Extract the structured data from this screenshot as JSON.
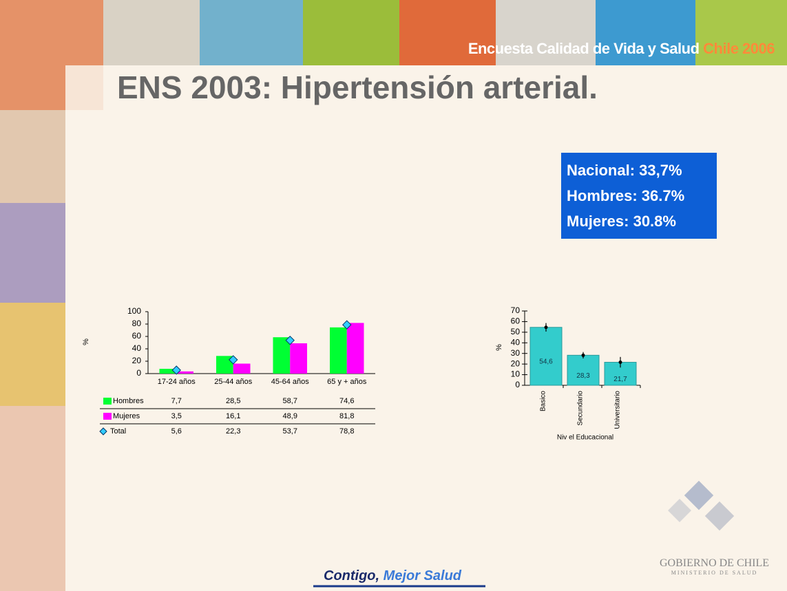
{
  "header": {
    "text": "Encuesta Calidad de Vida y Salud",
    "accent": "Chile 2006"
  },
  "title": "ENS 2003: Hipertensión arterial.",
  "summary": [
    "Nacional: 33,7%",
    "Hombres: 36.7%",
    "Mujeres: 30.8%"
  ],
  "footer": {
    "bold": "Contigo,",
    "accent": "Mejor Salud"
  },
  "logo": {
    "name": "GOBIERNO DE CHILE",
    "ministry": "MINISTERIO DE SALUD"
  },
  "chart_data": [
    {
      "type": "bar",
      "ylabel": "%",
      "categories": [
        "17-24 años",
        "25-44 años",
        "45-64 años",
        "65 y + años"
      ],
      "series": [
        {
          "name": "Hombres",
          "color": "#00ff33",
          "values": [
            7.7,
            28.5,
            58.7,
            74.6
          ],
          "value_labels": [
            "7,7",
            "28,5",
            "58,7",
            "74,6"
          ]
        },
        {
          "name": "Mujeres",
          "color": "#ff00ff",
          "values": [
            3.5,
            16.1,
            48.9,
            81.8
          ],
          "value_labels": [
            "3,5",
            "16,1",
            "48,9",
            "81,8"
          ]
        },
        {
          "name": "Total",
          "color": "#33ccff",
          "marker": "diamond",
          "values": [
            5.6,
            22.3,
            53.7,
            78.8
          ],
          "value_labels": [
            "5,6",
            "22,3",
            "53,7",
            "78,8"
          ]
        }
      ],
      "ylim": [
        0,
        100
      ],
      "yticks": [
        0,
        20,
        40,
        60,
        80,
        100
      ]
    },
    {
      "type": "bar",
      "ylabel": "%",
      "xlabel": "Niv el Educacional",
      "categories": [
        "Basico",
        "Secundario",
        "Universitario"
      ],
      "values": [
        54.6,
        28.3,
        21.7
      ],
      "value_labels": [
        "54,6",
        "28,3",
        "21,7"
      ],
      "errors": [
        4,
        3,
        5
      ],
      "color": "#33cccc",
      "ylim": [
        0,
        70
      ],
      "yticks": [
        0,
        10,
        20,
        30,
        40,
        50,
        60,
        70
      ]
    }
  ]
}
